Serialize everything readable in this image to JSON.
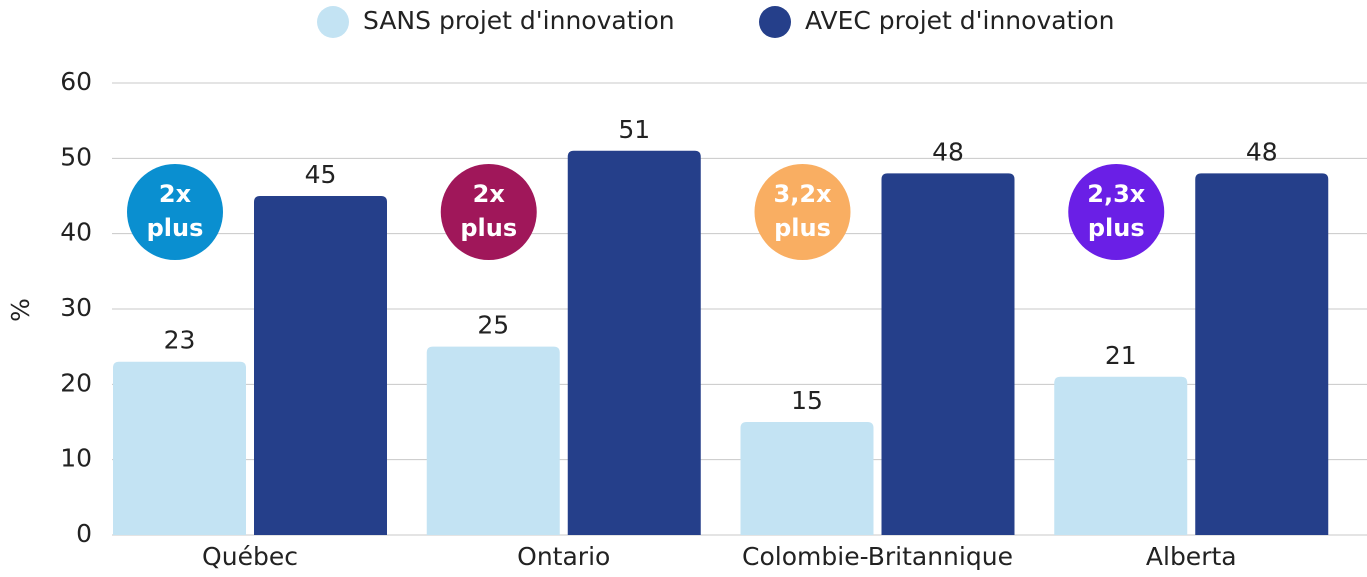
{
  "chart_data": {
    "type": "bar",
    "y_label": "%",
    "categories": [
      "Québec",
      "Ontario",
      "Colombie-Britannique",
      "Alberta"
    ],
    "series": [
      {
        "name": "SANS projet d'innovation",
        "color": "#c3e3f3",
        "values": [
          23,
          25,
          15,
          21
        ]
      },
      {
        "name": "AVEC projet d'innovation",
        "color": "#253f8a",
        "values": [
          45,
          51,
          48,
          48
        ]
      }
    ],
    "annotations": [
      {
        "lines": [
          "2x",
          "plus"
        ],
        "color": "#0a8fd0"
      },
      {
        "lines": [
          "2x",
          "plus"
        ],
        "color": "#a0175a"
      },
      {
        "lines": [
          "3,2x",
          "plus"
        ],
        "color": "#f9ae62"
      },
      {
        "lines": [
          "2,3x",
          "plus"
        ],
        "color": "#6a1fe6"
      }
    ],
    "ylim": [
      0,
      60
    ],
    "yticks": [
      0,
      10,
      20,
      30,
      40,
      50,
      60
    ],
    "grid": true,
    "legend": "top"
  }
}
